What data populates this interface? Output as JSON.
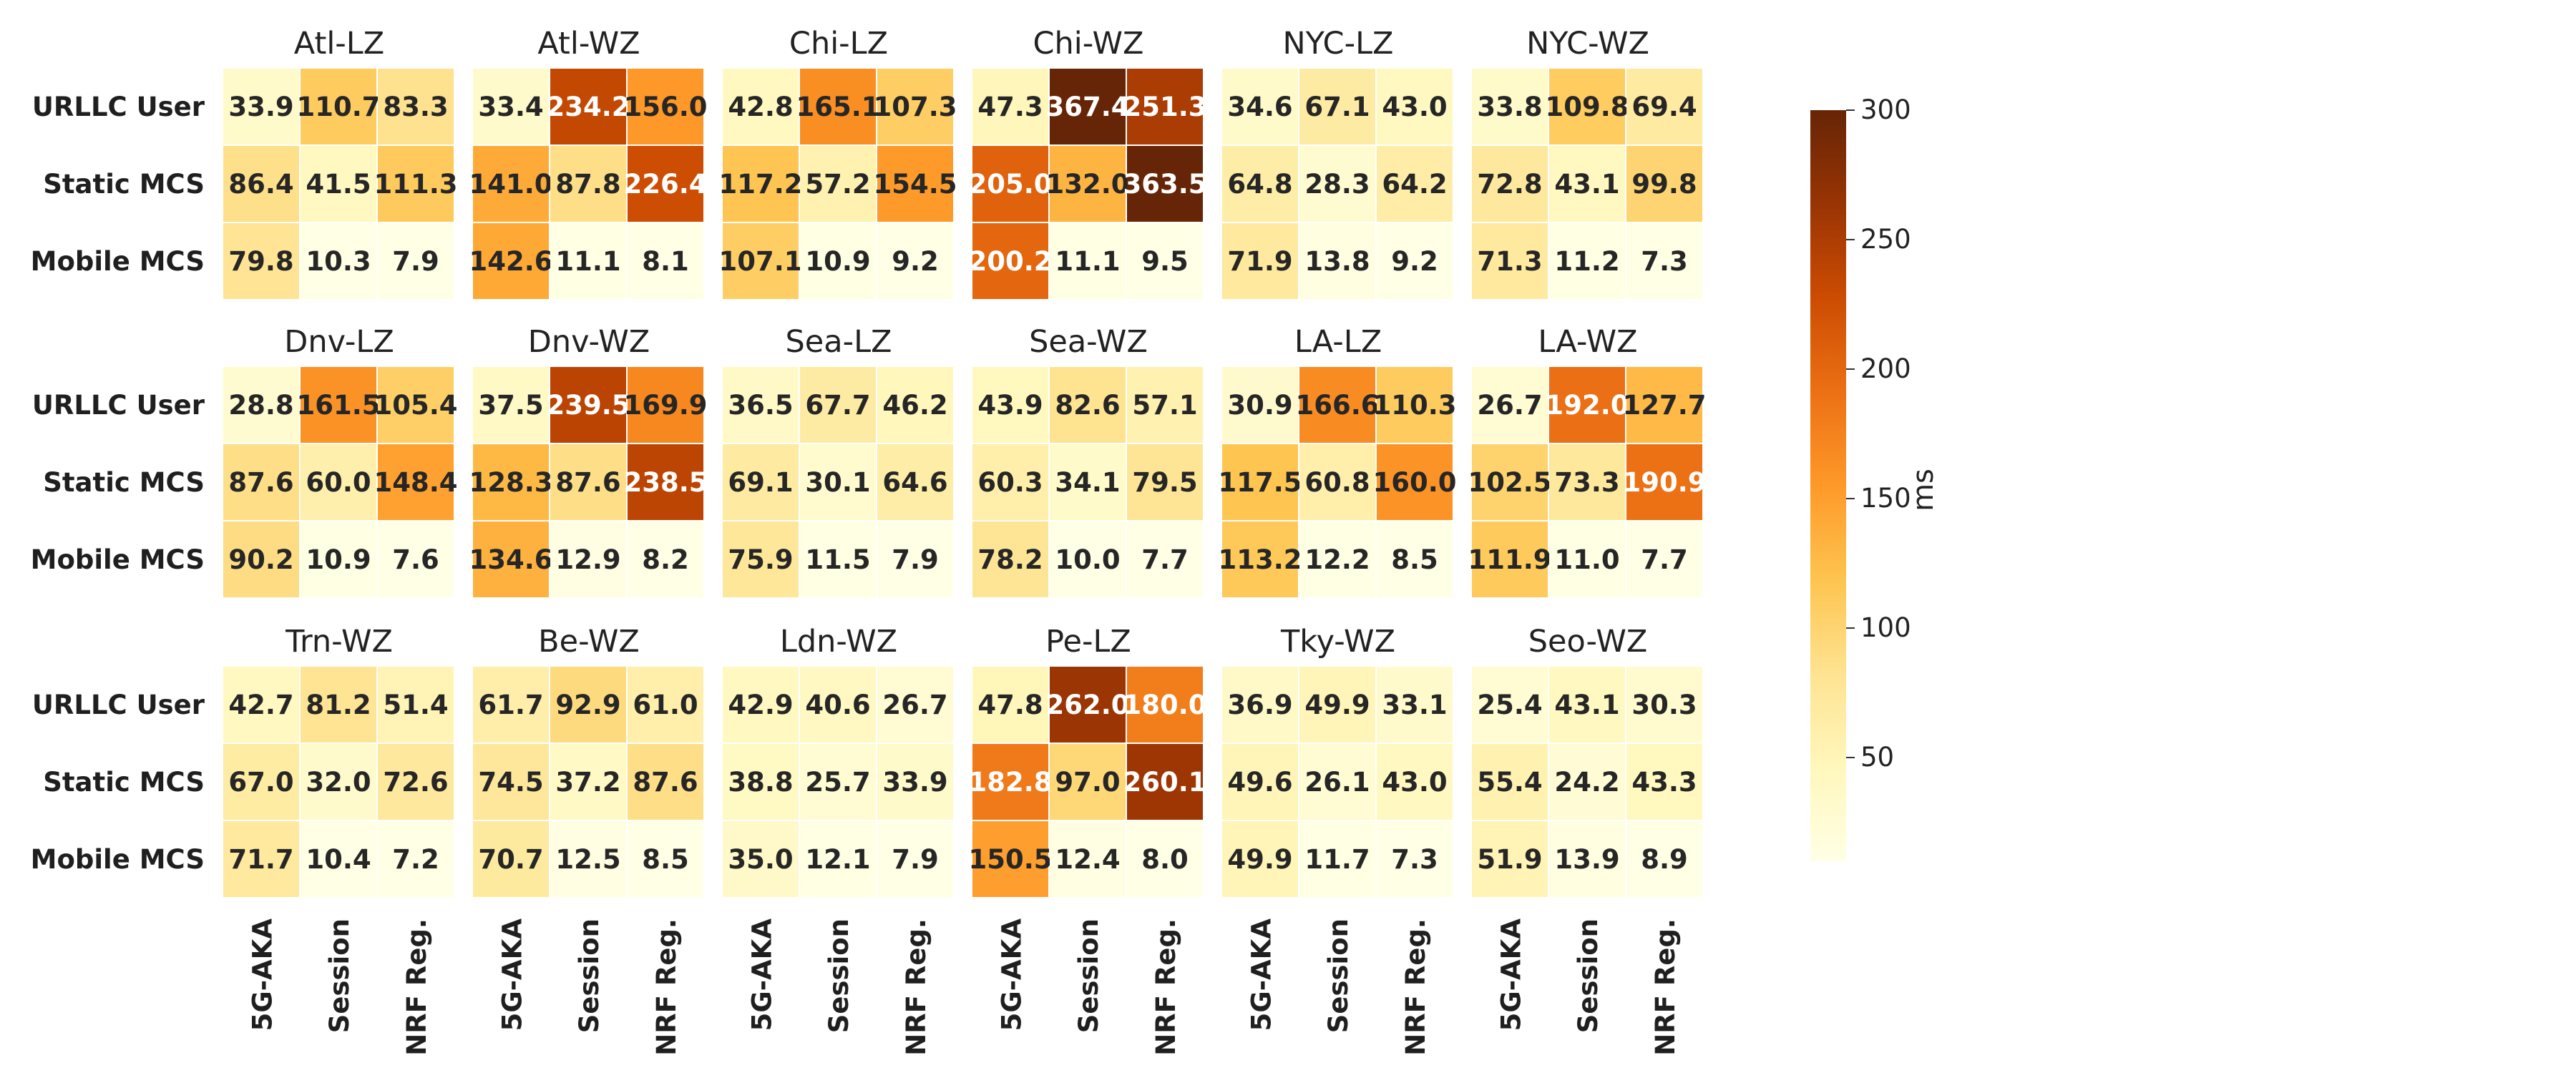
{
  "chart_data": {
    "type": "heatmap",
    "rows": [
      "URLLC User",
      "Static MCS",
      "Mobile MCS"
    ],
    "columns": [
      "5G-AKA",
      "Session",
      "NRF Reg."
    ],
    "colorbar": {
      "label": "ms",
      "range": [
        10,
        300
      ],
      "ticks": [
        50,
        100,
        150,
        200,
        250,
        300
      ],
      "colormap": [
        "#ffffe5",
        "#fff7bc",
        "#fee391",
        "#fec44f",
        "#fe9929",
        "#ec7014",
        "#cc4c02",
        "#993404",
        "#662506"
      ]
    },
    "panels": [
      {
        "title": "Atl-LZ",
        "values": [
          [
            33.9,
            110.7,
            83.3
          ],
          [
            86.4,
            41.5,
            111.3
          ],
          [
            79.8,
            10.3,
            7.9
          ]
        ]
      },
      {
        "title": "Atl-WZ",
        "values": [
          [
            33.4,
            234.2,
            156.0
          ],
          [
            141.0,
            87.8,
            226.4
          ],
          [
            142.6,
            11.1,
            8.1
          ]
        ]
      },
      {
        "title": "Chi-LZ",
        "values": [
          [
            42.8,
            165.1,
            107.3
          ],
          [
            117.2,
            57.2,
            154.5
          ],
          [
            107.1,
            10.9,
            9.2
          ]
        ]
      },
      {
        "title": "Chi-WZ",
        "values": [
          [
            47.3,
            367.4,
            251.3
          ],
          [
            205.0,
            132.0,
            363.5
          ],
          [
            200.2,
            11.1,
            9.5
          ]
        ]
      },
      {
        "title": "NYC-LZ",
        "values": [
          [
            34.6,
            67.1,
            43.0
          ],
          [
            64.8,
            28.3,
            64.2
          ],
          [
            71.9,
            13.8,
            9.2
          ]
        ]
      },
      {
        "title": "NYC-WZ",
        "values": [
          [
            33.8,
            109.8,
            69.4
          ],
          [
            72.8,
            43.1,
            99.8
          ],
          [
            71.3,
            11.2,
            7.3
          ]
        ]
      },
      {
        "title": "Dnv-LZ",
        "values": [
          [
            28.8,
            161.5,
            105.4
          ],
          [
            87.6,
            60.0,
            148.4
          ],
          [
            90.2,
            10.9,
            7.6
          ]
        ]
      },
      {
        "title": "Dnv-WZ",
        "values": [
          [
            37.5,
            239.5,
            169.9
          ],
          [
            128.3,
            87.6,
            238.5
          ],
          [
            134.6,
            12.9,
            8.2
          ]
        ]
      },
      {
        "title": "Sea-LZ",
        "values": [
          [
            36.5,
            67.7,
            46.2
          ],
          [
            69.1,
            30.1,
            64.6
          ],
          [
            75.9,
            11.5,
            7.9
          ]
        ]
      },
      {
        "title": "Sea-WZ",
        "values": [
          [
            43.9,
            82.6,
            57.1
          ],
          [
            60.3,
            34.1,
            79.5
          ],
          [
            78.2,
            10.0,
            7.7
          ]
        ]
      },
      {
        "title": "LA-LZ",
        "values": [
          [
            30.9,
            166.6,
            110.3
          ],
          [
            117.5,
            60.8,
            160.0
          ],
          [
            113.2,
            12.2,
            8.5
          ]
        ]
      },
      {
        "title": "LA-WZ",
        "values": [
          [
            26.7,
            192.0,
            127.7
          ],
          [
            102.5,
            73.3,
            190.9
          ],
          [
            111.9,
            11.0,
            7.7
          ]
        ]
      },
      {
        "title": "Trn-WZ",
        "values": [
          [
            42.7,
            81.2,
            51.4
          ],
          [
            67.0,
            32.0,
            72.6
          ],
          [
            71.7,
            10.4,
            7.2
          ]
        ]
      },
      {
        "title": "Be-WZ",
        "values": [
          [
            61.7,
            92.9,
            61.0
          ],
          [
            74.5,
            37.2,
            87.6
          ],
          [
            70.7,
            12.5,
            8.5
          ]
        ]
      },
      {
        "title": "Ldn-WZ",
        "values": [
          [
            42.9,
            40.6,
            26.7
          ],
          [
            38.8,
            25.7,
            33.9
          ],
          [
            35.0,
            12.1,
            7.9
          ]
        ]
      },
      {
        "title": "Pe-LZ",
        "values": [
          [
            47.8,
            262.0,
            180.0
          ],
          [
            182.8,
            97.0,
            260.1
          ],
          [
            150.5,
            12.4,
            8.0
          ]
        ]
      },
      {
        "title": "Tky-WZ",
        "values": [
          [
            36.9,
            49.9,
            33.1
          ],
          [
            49.6,
            26.1,
            43.0
          ],
          [
            49.9,
            11.7,
            7.3
          ]
        ]
      },
      {
        "title": "Seo-WZ",
        "values": [
          [
            25.4,
            43.1,
            30.3
          ],
          [
            55.4,
            24.2,
            43.3
          ],
          [
            51.9,
            13.9,
            8.9
          ]
        ]
      }
    ]
  }
}
